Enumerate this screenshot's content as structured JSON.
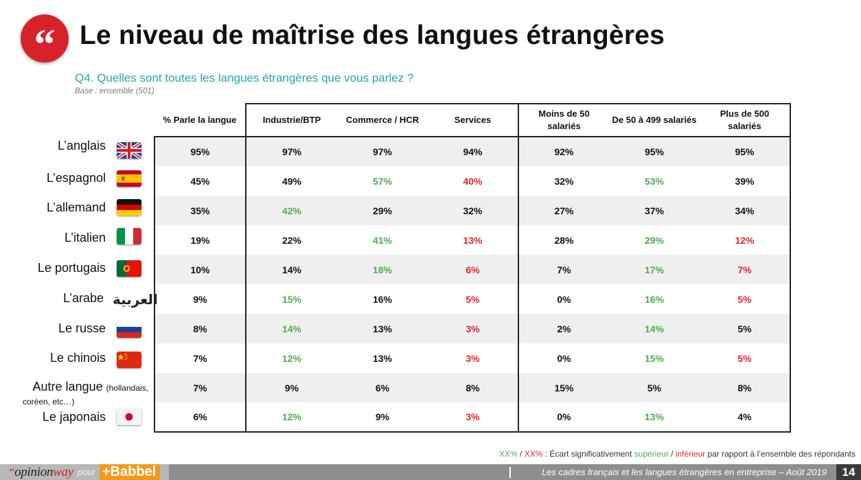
{
  "header": {
    "quote_glyph": "“",
    "title": "Le niveau de maîtrise des langues étrangères",
    "question": "Q4. Quelles sont toutes les langues étrangères que vous parlez ?",
    "base": "Base : ensemble (501)"
  },
  "table": {
    "columns": [
      "% Parle la langue",
      "Industrie/BTP",
      "Commerce / HCR",
      "Services",
      "Moins de 50 salariés",
      "De 50 à 499 salariés",
      "Plus de 500 salariés"
    ],
    "rows": [
      {
        "label": "L’anglais",
        "flag": "uk-flag-icon",
        "values": [
          "95%",
          "97%",
          "97%",
          "94%",
          "92%",
          "95%",
          "95%"
        ],
        "colors": [
          "",
          "",
          "",
          "",
          "",
          "",
          ""
        ]
      },
      {
        "label": "L’espagnol",
        "flag": "spain-flag-icon",
        "values": [
          "45%",
          "49%",
          "57%",
          "40%",
          "32%",
          "53%",
          "39%"
        ],
        "colors": [
          "",
          "",
          "green",
          "red",
          "",
          "green",
          ""
        ]
      },
      {
        "label": "L’allemand",
        "flag": "germany-flag-icon",
        "values": [
          "35%",
          "42%",
          "29%",
          "32%",
          "27%",
          "37%",
          "34%"
        ],
        "colors": [
          "",
          "green",
          "",
          "",
          "",
          "",
          ""
        ]
      },
      {
        "label": "L’italien",
        "flag": "italy-flag-icon",
        "values": [
          "19%",
          "22%",
          "41%",
          "13%",
          "28%",
          "29%",
          "12%"
        ],
        "colors": [
          "",
          "",
          "green",
          "red",
          "",
          "green",
          "red"
        ]
      },
      {
        "label": "Le portugais",
        "flag": "portugal-flag-icon",
        "values": [
          "10%",
          "14%",
          "18%",
          "6%",
          "7%",
          "17%",
          "7%"
        ],
        "colors": [
          "",
          "",
          "green",
          "red",
          "",
          "green",
          "red"
        ]
      },
      {
        "label": "L’arabe",
        "flag": "arabic-script-icon",
        "values": [
          "9%",
          "15%",
          "16%",
          "5%",
          "0%",
          "16%",
          "5%"
        ],
        "colors": [
          "",
          "green",
          "",
          "red",
          "",
          "green",
          "red"
        ]
      },
      {
        "label": "Le russe",
        "flag": "russia-flag-icon",
        "values": [
          "8%",
          "14%",
          "13%",
          "3%",
          "2%",
          "14%",
          "5%"
        ],
        "colors": [
          "",
          "green",
          "",
          "red",
          "",
          "green",
          ""
        ]
      },
      {
        "label": "Le chinois",
        "flag": "china-flag-icon",
        "values": [
          "7%",
          "12%",
          "13%",
          "3%",
          "0%",
          "15%",
          "5%"
        ],
        "colors": [
          "",
          "green",
          "",
          "red",
          "",
          "green",
          "red"
        ]
      },
      {
        "label": "Autre langue",
        "label_paren": "(hollandais,",
        "label_sub": "coréen, etc…)",
        "flag": "",
        "values": [
          "7%",
          "9%",
          "6%",
          "8%",
          "15%",
          "5%",
          "8%"
        ],
        "colors": [
          "",
          "",
          "",
          "",
          "",
          "",
          ""
        ]
      },
      {
        "label": "Le japonais",
        "flag": "japan-flag-icon",
        "values": [
          "6%",
          "12%",
          "9%",
          "3%",
          "0%",
          "13%",
          "4%"
        ],
        "colors": [
          "",
          "green",
          "",
          "red",
          "",
          "green",
          ""
        ]
      }
    ],
    "arabic_text": "العربية"
  },
  "legend": {
    "green_sample": "XX%",
    "slash": " / ",
    "red_sample": "XX%",
    "text_prefix": " : Écart significativement ",
    "sup": "supérieur",
    "mid": " / ",
    "inf": "inférieur",
    "text_suffix": " par rapport à l’ensemble des répondants"
  },
  "footer": {
    "brand_quote": "“",
    "brand_opinion": "opinion",
    "brand_way": "way",
    "pour": "pour",
    "babbel": "+Babbel",
    "caption": "Les cadres français et les langues étrangères en entreprise – Août 2019",
    "page": "14"
  },
  "colors": {
    "accent_red": "#d8222a",
    "teal": "#2aa3b5",
    "sig_green": "#4caf50",
    "sig_red": "#e0262a",
    "babbel_orange": "#f39a1b"
  }
}
